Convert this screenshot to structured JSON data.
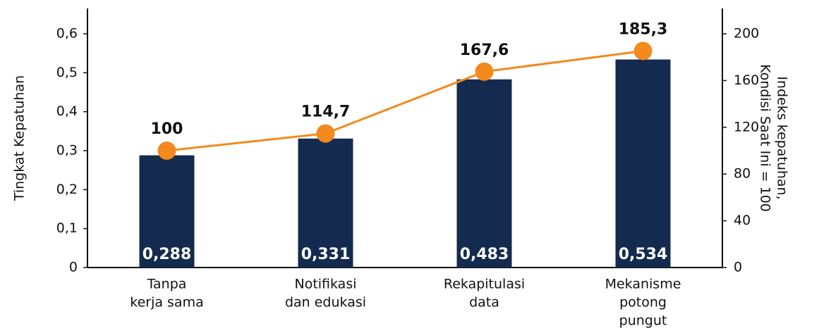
{
  "chart_data": {
    "type": "bar_line",
    "categories": [
      [
        "Tanpa",
        "kerja sama"
      ],
      [
        "Notifikasi",
        "dan edukasi"
      ],
      [
        "Rekapitulasi",
        "data"
      ],
      [
        "Mekanisme",
        "potong",
        "pungut"
      ]
    ],
    "series": [
      {
        "type": "bar",
        "color": "#142b4f",
        "values": [
          0.288,
          0.331,
          0.483,
          0.534
        ],
        "value_labels": [
          "0,288",
          "0,331",
          "0,483",
          "0,534"
        ]
      },
      {
        "type": "line",
        "axis": "y2",
        "color": "#f28a1e",
        "values": [
          100,
          114.7,
          167.6,
          185.3
        ],
        "value_labels": [
          "100",
          "114,7",
          "167,6",
          "185,3"
        ]
      }
    ],
    "ylabel": "Tingkat Kepatuhan",
    "y2label": [
      "Indeks kepatuhan,",
      "Kondisi Saat Ini = 100"
    ],
    "ylim": [
      0,
      0.665
    ],
    "yticks": [
      0,
      {
        "value": 0.1,
        "label": "0,1"
      },
      {
        "value": 0.2,
        "label": "0,2"
      },
      {
        "value": 0.3,
        "label": "0,3"
      },
      {
        "value": 0.4,
        "label": "0,4"
      },
      {
        "value": 0.5,
        "label": "0,5"
      },
      {
        "value": 0.6,
        "label": "0,6"
      }
    ],
    "y2lim": [
      0,
      221.7
    ],
    "y2ticks": [
      0,
      40,
      80,
      120,
      160,
      200
    ]
  }
}
